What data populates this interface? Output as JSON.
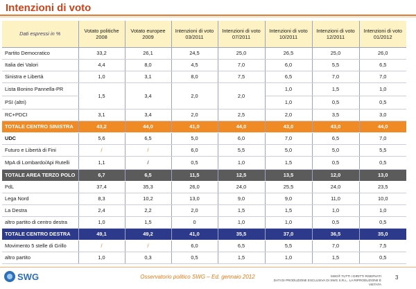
{
  "title": "Intenzioni di voto",
  "header": {
    "first": "Dati espressi in %",
    "cols": [
      "Votato politiche 2008",
      "Votato europee 2009",
      "Intenzioni di voto 03/2011",
      "Intenzioni di voto 07/2011",
      "Intenzioni di voto 10/2011",
      "Intenzioni di voto 12/2011",
      "Intenzioni di voto 01/2012"
    ]
  },
  "rows": [
    {
      "party": "Partito Democratico",
      "values": [
        "33,2",
        "26,1",
        "24,5",
        "25,0",
        "26,5",
        "25,0",
        "26,0"
      ]
    },
    {
      "party": "Italia dei Valori",
      "values": [
        "4,4",
        "8,0",
        "4,5",
        "7,0",
        "6,0",
        "5,5",
        "6,5"
      ]
    },
    {
      "party": "Sinistra e Libertà",
      "values": [
        "1,0",
        "3,1",
        "8,0",
        "7,5",
        "6,5",
        "7,0",
        "7,0"
      ]
    },
    {
      "party": "Lista Bonino Pannella-PR",
      "shared": [
        "1,5",
        "3,4",
        "2,0",
        "2,0"
      ],
      "values": [
        "1,0",
        "1,5",
        "1,0"
      ]
    },
    {
      "party": "PSI (altri)",
      "values": [
        "1,0",
        "0,5",
        "0,5"
      ]
    },
    {
      "party": "RC+PDCI",
      "values": [
        "3,1",
        "3,4",
        "2,0",
        "2,5",
        "2,0",
        "3,5",
        "3,0"
      ]
    },
    {
      "party": "TOTALE CENTRO SINISTRA",
      "values": [
        "43,2",
        "44,0",
        "41,0",
        "44,0",
        "43,0",
        "43,0",
        "44,0"
      ]
    },
    {
      "party": "UDC",
      "values": [
        "5,6",
        "6,5",
        "5,0",
        "6,0",
        "7,0",
        "6,5",
        "7,0"
      ]
    },
    {
      "party": "Futuro e Libertà di Fini",
      "values": [
        "/",
        "/",
        "6,0",
        "5,5",
        "5,0",
        "5,0",
        "5,5"
      ]
    },
    {
      "party": "MpA di Lombardo/Api Rutelli",
      "values": [
        "1,1",
        "/",
        "0,5",
        "1,0",
        "1,5",
        "0,5",
        "0,5"
      ]
    },
    {
      "party": "TOTALE AREA TERZO POLO",
      "values": [
        "6,7",
        "6,5",
        "11,5",
        "12,5",
        "13,5",
        "12,0",
        "13,0"
      ]
    },
    {
      "party": "PdL",
      "values": [
        "37,4",
        "35,3",
        "26,0",
        "24,0",
        "25,5",
        "24,0",
        "23,5"
      ]
    },
    {
      "party": "Lega Nord",
      "values": [
        "8,3",
        "10,2",
        "13,0",
        "9,0",
        "9,0",
        "11,0",
        "10,0"
      ]
    },
    {
      "party": "La Destra",
      "values": [
        "2,4",
        "2,2",
        "2,0",
        "1,5",
        "1,5",
        "1,0",
        "1,0"
      ]
    },
    {
      "party": "altro partito di centro destra",
      "values": [
        "1,0",
        "1,5",
        "0",
        "1,0",
        "1,0",
        "0,5",
        "0,5"
      ]
    },
    {
      "party": "TOTALE CENTRO DESTRA",
      "values": [
        "49,1",
        "49,2",
        "41,0",
        "35,5",
        "37,0",
        "36,5",
        "35,0"
      ]
    },
    {
      "party": "Movimento 5 stelle di Grillo",
      "values": [
        "/",
        "/",
        "6,0",
        "6,5",
        "5,5",
        "7,0",
        "7,5"
      ]
    },
    {
      "party": "altro partito",
      "values": [
        "1,0",
        "0,3",
        "0,5",
        "1,5",
        "1,0",
        "1,5",
        "0,5"
      ]
    }
  ],
  "footer": {
    "logo": "SWG",
    "center": "Osservatorio politico SWG – Ed. gennaio 2012",
    "right_line1": "SWG® TUTTI I DIRITTI RISERVATI",
    "right_line2": "DATI DI PRODUZIONE ESCLUSIVA DI SWG S.R.L.. LA RIPRODUZIONE È VIETATA",
    "page": "3"
  },
  "colors": {
    "title": "#c8441a",
    "total_centro_sinistra": "#f08a24",
    "total_terzo_polo": "#5b5b5b",
    "total_centro_destra": "#2d3a8c",
    "header_bg": "#fdf2c4"
  }
}
